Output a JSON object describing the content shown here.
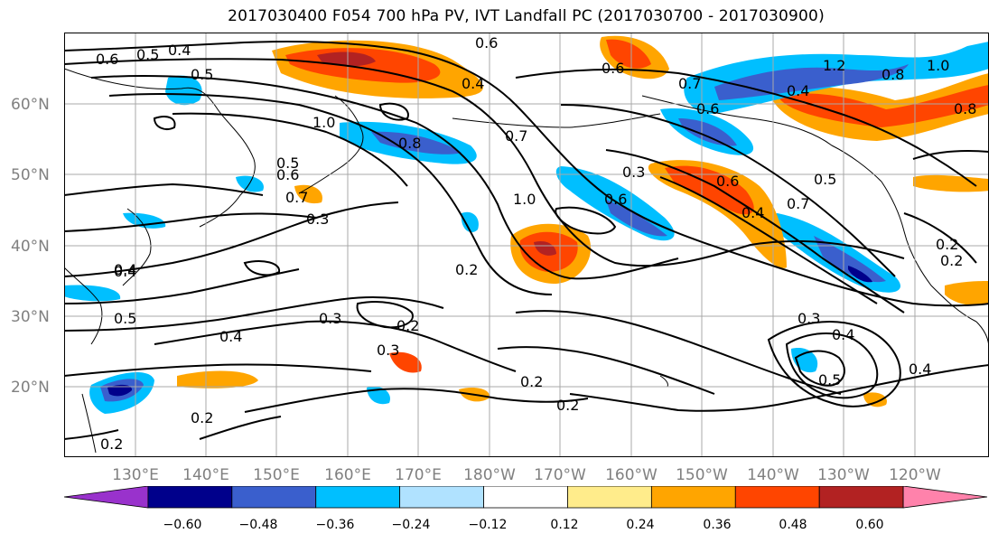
{
  "title": "2017030400 F054 700 hPa PV, IVT Landfall PC (2017030700 - 2017030900)",
  "lat_labels": [
    "60°N",
    "50°N",
    "40°N",
    "30°N",
    "20°N"
  ],
  "lon_labels": [
    "130°E",
    "140°E",
    "150°E",
    "160°E",
    "170°E",
    "180°W",
    "170°W",
    "160°W",
    "150°W",
    "140°W",
    "130°W",
    "120°W"
  ],
  "colorbar": {
    "colors": [
      "#9932cc",
      "#00008b",
      "#3a5fcd",
      "#00bfff",
      "#b0e2ff",
      "#ffffff",
      "#ffec8b",
      "#ffa500",
      "#ff4500",
      "#b22222",
      "#ff82ab"
    ],
    "labels": [
      "−0.60",
      "−0.48",
      "−0.36",
      "−0.24",
      "−0.12",
      "0.12",
      "0.24",
      "0.36",
      "0.48",
      "0.60"
    ]
  },
  "contour_labels": [
    "0.6",
    "0.5",
    "0.4",
    "0.5",
    "0.6",
    "0.4",
    "1.0",
    "0.5",
    "0.6",
    "0.7",
    "0.3",
    "0.8",
    "0.7",
    "1.0",
    "0.2",
    "0.6",
    "0.3",
    "0.6",
    "0.4",
    "0.7",
    "0.5",
    "0.3",
    "0.2",
    "0.4",
    "0.5",
    "0.4",
    "0.4",
    "0.2",
    "0.3",
    "0.2",
    "0.2",
    "0.2",
    "0.3",
    "0.4",
    "0.5",
    "0.4",
    "0.2",
    "0.6",
    "1.2",
    "0.8",
    "1.0",
    "0.7",
    "0.6",
    "0.4",
    "0.8",
    "0.2"
  ],
  "legend": {
    "shading": "IVT Landfall PC",
    "contours": "700 hPa PV"
  }
}
